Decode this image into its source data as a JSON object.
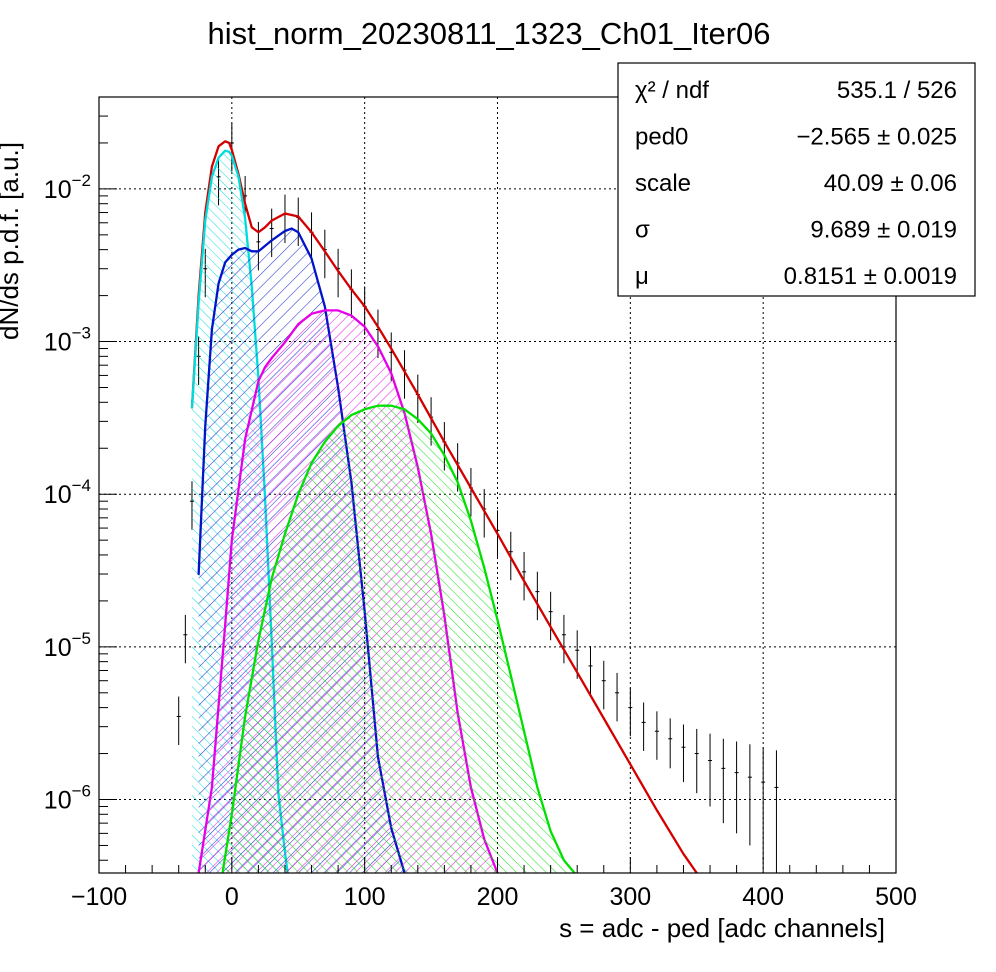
{
  "chart_data": {
    "type": "line",
    "title": "hist_norm_20230811_1323_Ch01_Iter06",
    "xlabel": "s = adc - ped [adc channels]",
    "ylabel": "dN/ds p.d.f. [a.u.]",
    "xlim": [
      -100,
      500
    ],
    "ylim": [
      3.3e-07,
      0.04
    ],
    "y_scale": "log",
    "grid": true,
    "x_ticks": [
      {
        "value": -100,
        "label": "−100"
      },
      {
        "value": 0,
        "label": "0"
      },
      {
        "value": 100,
        "label": "100"
      },
      {
        "value": 200,
        "label": "200"
      },
      {
        "value": 300,
        "label": "300"
      },
      {
        "value": 400,
        "label": "400"
      },
      {
        "value": 500,
        "label": "500"
      }
    ],
    "y_ticks": [
      {
        "value": 0.01,
        "base": "10",
        "exponent": "−2"
      },
      {
        "value": 0.001,
        "base": "10",
        "exponent": "−3"
      },
      {
        "value": 0.0001,
        "base": "10",
        "exponent": "−4"
      },
      {
        "value": 1e-05,
        "base": "10",
        "exponent": "−5"
      },
      {
        "value": 1e-06,
        "base": "10",
        "exponent": "−6"
      }
    ],
    "stats_box": {
      "placement": "top-right",
      "rows": [
        {
          "label": "χ² / ndf",
          "value": "535.1 / 526"
        },
        {
          "label": "ped0",
          "value": "−2.565 ± 0.025"
        },
        {
          "label": "scale",
          "value": "40.09 ± 0.06"
        },
        {
          "label": "σ",
          "value": "9.689 ± 0.019"
        },
        {
          "label": "μ",
          "value": "0.8151 ± 0.0019"
        }
      ]
    },
    "series": [
      {
        "color": "#000000",
        "style": "histogram-errorbars",
        "x": [
          -40,
          -35,
          -30,
          -25,
          -20,
          -10,
          0,
          10,
          20,
          30,
          40,
          50,
          60,
          70,
          80,
          90,
          100,
          110,
          120,
          130,
          140,
          150,
          160,
          170,
          180,
          190,
          200,
          210,
          220,
          230,
          240,
          250,
          260,
          270,
          280,
          290,
          300,
          310,
          320,
          330,
          340,
          350,
          360,
          370,
          380,
          390,
          400,
          410
        ],
        "y": [
          3.5e-06,
          1.2e-05,
          9e-05,
          0.0008,
          0.003,
          0.012,
          0.02,
          0.009,
          0.0045,
          0.0055,
          0.0068,
          0.0065,
          0.0052,
          0.004,
          0.003,
          0.0022,
          0.0017,
          0.0012,
          0.00085,
          0.00065,
          0.00045,
          0.00032,
          0.00022,
          0.00016,
          0.00011,
          8e-05,
          5.8e-05,
          4.2e-05,
          3.1e-05,
          2.3e-05,
          1.7e-05,
          1.2e-05,
          9.5e-06,
          7.5e-06,
          6e-06,
          5e-06,
          4e-06,
          3.2e-06,
          2.8e-06,
          2.5e-06,
          2.2e-06,
          2e-06,
          1.8e-06,
          1.6e-06,
          1.5e-06,
          1.4e-06,
          1.3e-06,
          1.2e-06
        ]
      },
      {
        "color": "#d40000",
        "style": "line",
        "x": [
          -30,
          -25,
          -20,
          -15,
          -10,
          -5,
          -2,
          0,
          5,
          10,
          15,
          20,
          25,
          30,
          40,
          50,
          60,
          70,
          80,
          90,
          100,
          110,
          120,
          140,
          160,
          180,
          200,
          220,
          240,
          260,
          280,
          300,
          320,
          340,
          350
        ],
        "y": [
          0.00037,
          0.002,
          0.007,
          0.014,
          0.019,
          0.0205,
          0.02,
          0.018,
          0.0125,
          0.008,
          0.0056,
          0.0052,
          0.0056,
          0.0062,
          0.0069,
          0.0066,
          0.0052,
          0.0039,
          0.0029,
          0.0022,
          0.0017,
          0.00125,
          0.0009,
          0.00045,
          0.00022,
          0.00011,
          5.5e-05,
          2.7e-05,
          1.35e-05,
          6.8e-06,
          3.4e-06,
          1.7e-06,
          8.5e-07,
          4.4e-07,
          3.3e-07
        ]
      },
      {
        "color": "#00dcdc",
        "style": "hatched-fill",
        "x": [
          -30,
          -25,
          -20,
          -15,
          -10,
          -5,
          -2,
          0,
          5,
          10,
          15,
          20,
          25,
          30,
          35,
          40,
          42
        ],
        "y": [
          0.00037,
          0.0018,
          0.0062,
          0.012,
          0.016,
          0.0178,
          0.0175,
          0.0165,
          0.012,
          0.0064,
          0.0023,
          0.00058,
          9.5e-05,
          1.1e-05,
          1.1e-06,
          4.5e-07,
          3.3e-07
        ]
      },
      {
        "color": "#0014c8",
        "style": "hatched-fill",
        "x": [
          -25,
          -20,
          -15,
          -10,
          -5,
          0,
          5,
          10,
          15,
          20,
          30,
          40,
          45,
          50,
          60,
          70,
          80,
          90,
          100,
          110,
          120,
          130
        ],
        "y": [
          3e-05,
          0.00028,
          0.0012,
          0.0024,
          0.0033,
          0.0037,
          0.004,
          0.0041,
          0.0039,
          0.0039,
          0.0046,
          0.0053,
          0.0055,
          0.0052,
          0.0035,
          0.0017,
          0.0005,
          0.00012,
          1.7e-05,
          1.9e-06,
          6.5e-07,
          3.3e-07
        ]
      },
      {
        "color": "#e600e6",
        "style": "hatched-fill",
        "x": [
          -25,
          -15,
          -5,
          0,
          10,
          20,
          25,
          30,
          40,
          50,
          60,
          70,
          80,
          90,
          100,
          110,
          120,
          130,
          140,
          150,
          160,
          170,
          180,
          190,
          200
        ],
        "y": [
          3.3e-07,
          1.2e-06,
          1.4e-05,
          5e-05,
          0.00023,
          0.00055,
          0.00068,
          0.00078,
          0.00099,
          0.0013,
          0.00152,
          0.0016,
          0.0016,
          0.00148,
          0.00125,
          0.00093,
          0.00062,
          0.00034,
          0.00015,
          5.5e-05,
          1.6e-05,
          3.7e-06,
          1.2e-06,
          5.5e-07,
          3.3e-07
        ]
      },
      {
        "color": "#00e000",
        "style": "hatched-fill",
        "x": [
          -7,
          0,
          10,
          20,
          30,
          40,
          50,
          60,
          70,
          80,
          90,
          100,
          110,
          120,
          130,
          140,
          150,
          160,
          170,
          180,
          190,
          200,
          210,
          220,
          230,
          240,
          250,
          258
        ],
        "y": [
          3.3e-07,
          8e-07,
          3.5e-06,
          1.1e-05,
          2.8e-05,
          5.5e-05,
          0.0001,
          0.00016,
          0.00022,
          0.00028,
          0.00033,
          0.00036,
          0.00038,
          0.00038,
          0.00036,
          0.00031,
          0.00025,
          0.00018,
          0.00012,
          6.7e-05,
          3.3e-05,
          1.5e-05,
          6.5e-06,
          2.8e-06,
          1.2e-06,
          6.2e-07,
          4e-07,
          3.3e-07
        ]
      }
    ]
  }
}
